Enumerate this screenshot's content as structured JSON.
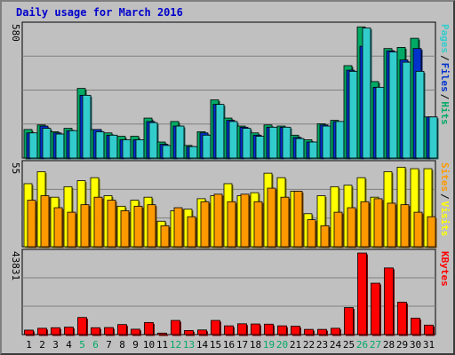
{
  "page_title": "Daily usage for March 2016",
  "colors": {
    "pages": "#33cccc",
    "files": "#0033cc",
    "hits": "#00aa66",
    "visits": "#ffff00",
    "sites": "#ff9900",
    "kbytes": "#ff0000",
    "weekend": "#00aa66",
    "weekday": "#000000"
  },
  "chart_data": [
    {
      "type": "bar",
      "panel": "hits-files-pages",
      "ylabel_max": "580",
      "ylim": [
        0,
        580
      ],
      "legend": [
        "Pages",
        "/",
        "Files",
        "/",
        "Hits"
      ],
      "categories": [
        "1",
        "2",
        "3",
        "4",
        "5",
        "6",
        "7",
        "8",
        "9",
        "10",
        "11",
        "12",
        "13",
        "14",
        "15",
        "16",
        "17",
        "18",
        "19",
        "20",
        "21",
        "22",
        "23",
        "24",
        "25",
        "26",
        "27",
        "28",
        "29",
        "30",
        "31"
      ],
      "series": [
        {
          "name": "Hits",
          "values": [
            125,
            145,
            115,
            130,
            305,
            125,
            110,
            95,
            95,
            175,
            70,
            160,
            55,
            115,
            255,
            175,
            140,
            110,
            145,
            140,
            100,
            80,
            150,
            165,
            405,
            575,
            335,
            480,
            485,
            525,
            180
          ]
        },
        {
          "name": "Files",
          "values": [
            110,
            140,
            110,
            120,
            275,
            125,
            100,
            80,
            80,
            160,
            60,
            140,
            50,
            110,
            235,
            165,
            135,
            100,
            135,
            135,
            90,
            70,
            145,
            160,
            385,
            490,
            310,
            470,
            430,
            480,
            180
          ]
        },
        {
          "name": "Pages",
          "values": [
            110,
            130,
            105,
            120,
            275,
            115,
            100,
            80,
            80,
            155,
            55,
            140,
            50,
            100,
            235,
            160,
            130,
            95,
            135,
            135,
            85,
            70,
            140,
            160,
            380,
            570,
            310,
            465,
            420,
            380,
            180
          ]
        }
      ]
    },
    {
      "type": "bar",
      "panel": "visits-sites",
      "ylabel_max": "55",
      "ylim": [
        0,
        55
      ],
      "legend": [
        "Sites",
        "/",
        "Visits"
      ],
      "categories": [
        "1",
        "2",
        "3",
        "4",
        "5",
        "6",
        "7",
        "8",
        "9",
        "10",
        "11",
        "12",
        "13",
        "14",
        "15",
        "16",
        "17",
        "18",
        "19",
        "20",
        "21",
        "22",
        "23",
        "24",
        "25",
        "26",
        "27",
        "28",
        "29",
        "30",
        "31"
      ],
      "series": [
        {
          "name": "Visits",
          "values": [
            42,
            50,
            33,
            40,
            44,
            46,
            34,
            27,
            31,
            33,
            17,
            24,
            25,
            32,
            34,
            42,
            34,
            36,
            49,
            46,
            37,
            22,
            34,
            40,
            41,
            46,
            33,
            50,
            53,
            52,
            52
          ]
        },
        {
          "name": "Sites",
          "values": [
            31,
            34,
            26,
            23,
            28,
            33,
            31,
            24,
            27,
            28,
            14,
            26,
            20,
            30,
            35,
            30,
            35,
            30,
            39,
            33,
            37,
            18,
            14,
            23,
            26,
            30,
            32,
            29,
            28,
            23,
            20
          ]
        }
      ]
    },
    {
      "type": "bar",
      "panel": "kbytes",
      "ylabel_max": "43831",
      "ylim": [
        0,
        43831
      ],
      "legend": [
        "KBytes"
      ],
      "categories": [
        "1",
        "2",
        "3",
        "4",
        "5",
        "6",
        "7",
        "8",
        "9",
        "10",
        "11",
        "12",
        "13",
        "14",
        "15",
        "16",
        "17",
        "18",
        "19",
        "20",
        "21",
        "22",
        "23",
        "24",
        "25",
        "26",
        "27",
        "28",
        "29",
        "30",
        "31"
      ],
      "series": [
        {
          "name": "KBytes",
          "values": [
            2400,
            3400,
            3700,
            4000,
            9200,
            3700,
            3800,
            5400,
            2900,
            6500,
            800,
            7600,
            2200,
            2500,
            7600,
            4700,
            5800,
            5700,
            5600,
            4700,
            4500,
            2800,
            2800,
            3400,
            14500,
            43800,
            27600,
            35800,
            17400,
            8800,
            5100
          ]
        }
      ]
    }
  ]
}
